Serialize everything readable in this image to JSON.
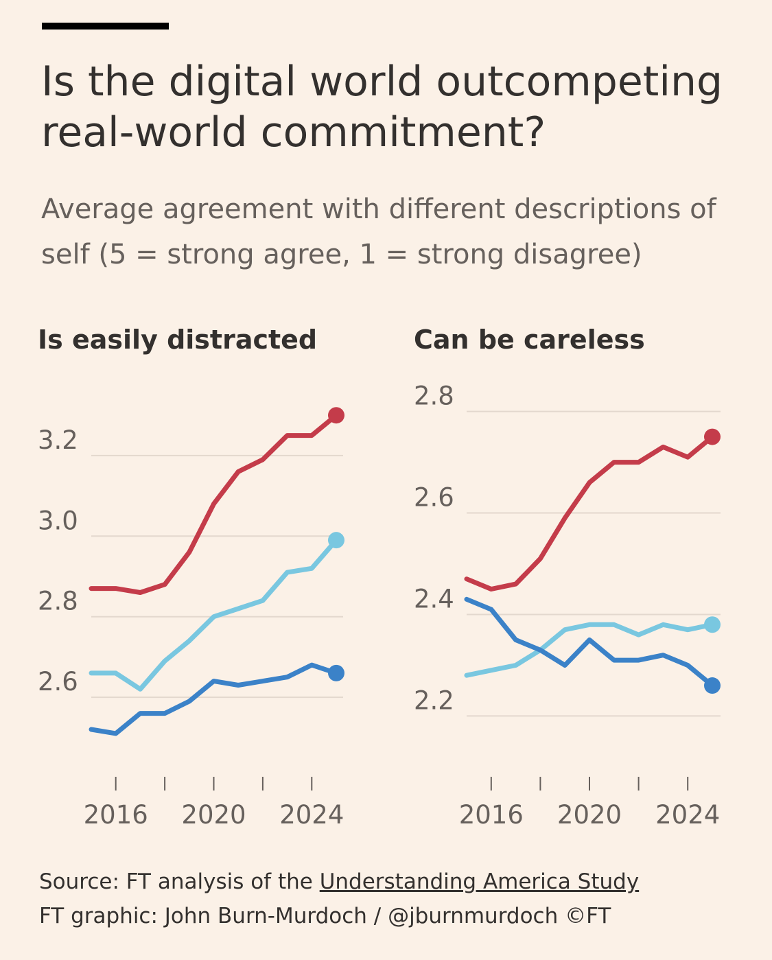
{
  "header": {
    "title": "Is the digital world outcompeting real-world commitment?",
    "subtitle": "Average agreement with different descriptions of self (5 = strong agree, 1 = strong disagree)"
  },
  "footer": {
    "source_prefix": "Source: FT analysis of the ",
    "source_link": "Understanding America Study",
    "credit": "FT graphic: John Burn-Murdoch / @jburnmurdoch ©FT"
  },
  "colors": {
    "background": "#fbf1e7",
    "series_red": "#c43c4a",
    "series_light_blue": "#79c7e0",
    "series_blue": "#3b82c8",
    "gridline": "#e3d8ce",
    "tick": "#66605c"
  },
  "chart_data": [
    {
      "type": "line",
      "title": "Is easily distracted",
      "xlabel": "",
      "ylabel": "",
      "x": [
        2015,
        2016,
        2017,
        2018,
        2019,
        2020,
        2021,
        2022,
        2023,
        2024,
        2025
      ],
      "xticks": [
        2016,
        2018,
        2020,
        2022,
        2024
      ],
      "xtick_labels": [
        "2016",
        "2020",
        "2024"
      ],
      "yticks": [
        2.6,
        2.8,
        3.0,
        3.2
      ],
      "ytick_labels": [
        "2.6",
        "2.8",
        "3.0",
        "3.2"
      ],
      "ylim": [
        2.44,
        3.36
      ],
      "grid": true,
      "series": [
        {
          "name": "red",
          "color": "#c43c4a",
          "values": [
            2.87,
            2.87,
            2.86,
            2.88,
            2.96,
            3.08,
            3.16,
            3.19,
            3.25,
            3.25,
            3.3
          ]
        },
        {
          "name": "light blue",
          "color": "#79c7e0",
          "values": [
            2.66,
            2.66,
            2.62,
            2.69,
            2.74,
            2.8,
            2.82,
            2.84,
            2.91,
            2.92,
            2.99
          ]
        },
        {
          "name": "blue",
          "color": "#3b82c8",
          "values": [
            2.52,
            2.51,
            2.56,
            2.56,
            2.59,
            2.64,
            2.63,
            2.64,
            2.65,
            2.68,
            2.66
          ]
        }
      ]
    },
    {
      "type": "line",
      "title": "Can be careless",
      "xlabel": "",
      "ylabel": "",
      "x": [
        2015,
        2016,
        2017,
        2018,
        2019,
        2020,
        2021,
        2022,
        2023,
        2024,
        2025
      ],
      "xticks": [
        2016,
        2018,
        2020,
        2022,
        2024
      ],
      "xtick_labels": [
        "2016",
        "2020",
        "2024"
      ],
      "yticks": [
        2.2,
        2.4,
        2.6,
        2.8
      ],
      "ytick_labels": [
        "2.2",
        "2.4",
        "2.6",
        "2.8"
      ],
      "ylim": [
        2.11,
        2.84
      ],
      "grid": true,
      "series": [
        {
          "name": "red",
          "color": "#c43c4a",
          "values": [
            2.47,
            2.45,
            2.46,
            2.51,
            2.59,
            2.66,
            2.7,
            2.7,
            2.73,
            2.71,
            2.75
          ]
        },
        {
          "name": "light blue",
          "color": "#79c7e0",
          "values": [
            2.28,
            2.29,
            2.3,
            2.33,
            2.37,
            2.38,
            2.38,
            2.36,
            2.38,
            2.37,
            2.38
          ]
        },
        {
          "name": "blue",
          "color": "#3b82c8",
          "values": [
            2.43,
            2.41,
            2.35,
            2.33,
            2.3,
            2.35,
            2.31,
            2.31,
            2.32,
            2.3,
            2.26
          ]
        }
      ]
    }
  ]
}
